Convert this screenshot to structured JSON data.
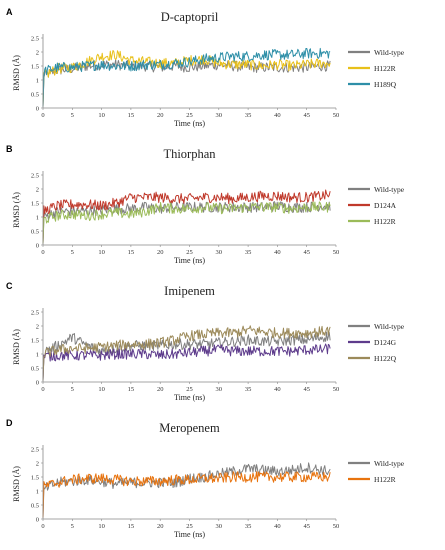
{
  "chart_data": [
    {
      "type": "line",
      "panel": "A",
      "title": "D-captopril",
      "xlabel": "Time (ns)",
      "ylabel": "RMSD (Å)",
      "xlim": [
        0,
        50
      ],
      "ylim": [
        0,
        2.5
      ],
      "xticks": [
        0,
        5,
        10,
        15,
        20,
        25,
        30,
        35,
        40,
        45,
        50
      ],
      "yticks": [
        0,
        0.5,
        1,
        1.5,
        2,
        2.5
      ],
      "grid": false,
      "legend": "right",
      "series": [
        {
          "name": "Wild-type",
          "color": "#808080",
          "x": [
            0,
            2.5,
            5,
            7.5,
            10,
            12.5,
            15,
            17.5,
            20,
            22.5,
            25,
            27.5,
            30,
            32.5,
            35,
            37.5,
            40,
            42.5,
            45,
            47.5,
            49
          ],
          "values": [
            1.15,
            1.35,
            1.4,
            1.5,
            1.55,
            1.55,
            1.5,
            1.5,
            1.45,
            1.5,
            1.45,
            1.5,
            1.55,
            1.5,
            1.45,
            1.45,
            1.45,
            1.45,
            1.45,
            1.5,
            1.5
          ]
        },
        {
          "name": "H122R",
          "color": "#E8C01A",
          "x": [
            0,
            2.5,
            5,
            7.5,
            10,
            12.5,
            15,
            17.5,
            20,
            22.5,
            25,
            27.5,
            30,
            32.5,
            35,
            37.5,
            40,
            42.5,
            45,
            47.5,
            49
          ],
          "values": [
            1.15,
            1.4,
            1.45,
            1.65,
            1.85,
            1.9,
            1.7,
            1.65,
            1.6,
            1.6,
            1.7,
            1.75,
            1.6,
            1.55,
            1.55,
            1.5,
            1.55,
            1.5,
            1.55,
            1.6,
            1.6
          ]
        },
        {
          "name": "H189Q",
          "color": "#2E8FA8",
          "x": [
            0,
            2.5,
            5,
            7.5,
            10,
            12.5,
            15,
            17.5,
            20,
            22.5,
            25,
            27.5,
            30,
            32.5,
            35,
            37.5,
            40,
            42.5,
            45,
            47.5,
            49
          ],
          "values": [
            1.3,
            1.45,
            1.45,
            1.5,
            1.55,
            1.5,
            1.5,
            1.55,
            1.55,
            1.6,
            1.65,
            1.75,
            1.8,
            1.85,
            1.85,
            1.9,
            1.9,
            1.9,
            1.95,
            1.95,
            1.95
          ]
        }
      ]
    },
    {
      "type": "line",
      "panel": "B",
      "title": "Thiorphan",
      "xlabel": "Time (ns)",
      "ylabel": "RMSD (Å)",
      "xlim": [
        0,
        50
      ],
      "ylim": [
        0,
        2.5
      ],
      "xticks": [
        0,
        5,
        10,
        15,
        20,
        25,
        30,
        35,
        40,
        45,
        50
      ],
      "yticks": [
        0,
        0.5,
        1,
        1.5,
        2,
        2.5
      ],
      "grid": false,
      "legend": "right",
      "series": [
        {
          "name": "Wild-type",
          "color": "#808080",
          "x": [
            0,
            2.5,
            5,
            7.5,
            10,
            12.5,
            15,
            17.5,
            20,
            22.5,
            25,
            27.5,
            30,
            32.5,
            35,
            37.5,
            40,
            42.5,
            45,
            47.5,
            49
          ],
          "values": [
            1.0,
            1.2,
            1.2,
            1.2,
            1.25,
            1.3,
            1.3,
            1.35,
            1.3,
            1.35,
            1.35,
            1.35,
            1.35,
            1.35,
            1.35,
            1.35,
            1.4,
            1.35,
            1.35,
            1.4,
            1.4
          ]
        },
        {
          "name": "D124A",
          "color": "#C0392B",
          "x": [
            0,
            2.5,
            5,
            7.5,
            10,
            12.5,
            15,
            17.5,
            20,
            22.5,
            25,
            27.5,
            30,
            32.5,
            35,
            37.5,
            40,
            42.5,
            45,
            47.5,
            49
          ],
          "values": [
            1.2,
            1.4,
            1.45,
            1.45,
            1.4,
            1.5,
            1.7,
            1.7,
            1.7,
            1.65,
            1.65,
            1.7,
            1.7,
            1.65,
            1.7,
            1.75,
            1.75,
            1.7,
            1.7,
            1.75,
            1.8
          ]
        },
        {
          "name": "H122R",
          "color": "#9BBB59",
          "x": [
            0,
            2.5,
            5,
            7.5,
            10,
            12.5,
            15,
            17.5,
            20,
            22.5,
            25,
            27.5,
            30,
            32.5,
            35,
            37.5,
            40,
            42.5,
            45,
            47.5,
            49
          ],
          "values": [
            0.9,
            1.05,
            1.1,
            1.05,
            1.1,
            1.15,
            1.1,
            1.2,
            1.35,
            1.3,
            1.3,
            1.35,
            1.3,
            1.3,
            1.35,
            1.35,
            1.35,
            1.3,
            1.35,
            1.35,
            1.35
          ]
        }
      ]
    },
    {
      "type": "line",
      "panel": "C",
      "title": "Imipenem",
      "xlabel": "Time (ns)",
      "ylabel": "RMSD (Å)",
      "xlim": [
        0,
        50
      ],
      "ylim": [
        0,
        2.5
      ],
      "xticks": [
        0,
        5,
        10,
        15,
        20,
        25,
        30,
        35,
        40,
        45,
        50
      ],
      "yticks": [
        0,
        0.5,
        1,
        1.5,
        2,
        2.5
      ],
      "grid": false,
      "legend": "right",
      "series": [
        {
          "name": "Wild-type",
          "color": "#808080",
          "x": [
            0,
            2.5,
            5,
            7.5,
            10,
            12.5,
            15,
            17.5,
            20,
            22.5,
            25,
            27.5,
            30,
            32.5,
            35,
            37.5,
            40,
            42.5,
            45,
            47.5,
            49
          ],
          "values": [
            1.05,
            1.3,
            1.6,
            1.3,
            1.1,
            1.2,
            1.3,
            1.3,
            1.3,
            1.35,
            1.35,
            1.35,
            1.4,
            1.45,
            1.5,
            1.45,
            1.45,
            1.5,
            1.5,
            1.6,
            1.65
          ]
        },
        {
          "name": "D124G",
          "color": "#5E3C8C",
          "x": [
            0,
            2.5,
            5,
            7.5,
            10,
            12.5,
            15,
            17.5,
            20,
            22.5,
            25,
            27.5,
            30,
            32.5,
            35,
            37.5,
            40,
            42.5,
            45,
            47.5,
            49
          ],
          "values": [
            0.9,
            0.95,
            0.95,
            0.95,
            0.95,
            1.0,
            1.0,
            1.0,
            0.95,
            1.0,
            1.05,
            1.1,
            1.15,
            1.1,
            1.1,
            1.1,
            1.1,
            1.1,
            1.15,
            1.15,
            1.2
          ]
        },
        {
          "name": "H122Q",
          "color": "#9C8A5A",
          "x": [
            0,
            2.5,
            5,
            7.5,
            10,
            12.5,
            15,
            17.5,
            20,
            22.5,
            25,
            27.5,
            30,
            32.5,
            35,
            37.5,
            40,
            42.5,
            45,
            47.5,
            49
          ],
          "values": [
            1.0,
            1.15,
            1.2,
            1.2,
            1.25,
            1.3,
            1.35,
            1.35,
            1.4,
            1.5,
            1.65,
            1.7,
            1.75,
            1.75,
            1.85,
            1.8,
            1.75,
            1.75,
            1.75,
            1.8,
            1.85
          ]
        }
      ]
    },
    {
      "type": "line",
      "panel": "D",
      "title": "Meropenem",
      "xlabel": "Time (ns)",
      "ylabel": "RMSD (Å)",
      "xlim": [
        0,
        50
      ],
      "ylim": [
        0,
        2.5
      ],
      "xticks": [
        0,
        5,
        10,
        15,
        20,
        25,
        30,
        35,
        40,
        45,
        50
      ],
      "yticks": [
        0,
        0.5,
        1,
        1.5,
        2,
        2.5
      ],
      "grid": false,
      "legend": "right",
      "series": [
        {
          "name": "Wild-type",
          "color": "#808080",
          "x": [
            0,
            2.5,
            5,
            7.5,
            10,
            12.5,
            15,
            17.5,
            20,
            22.5,
            25,
            27.5,
            30,
            32.5,
            35,
            37.5,
            40,
            42.5,
            45,
            47.5,
            49
          ],
          "values": [
            1.05,
            1.3,
            1.35,
            1.4,
            1.35,
            1.25,
            1.3,
            1.3,
            1.3,
            1.3,
            1.45,
            1.5,
            1.6,
            1.7,
            1.8,
            1.75,
            1.7,
            1.75,
            1.85,
            1.75,
            1.7
          ]
        },
        {
          "name": "H122R",
          "color": "#E8730E",
          "x": [
            0,
            2.5,
            5,
            7.5,
            10,
            12.5,
            15,
            17.5,
            20,
            22.5,
            25,
            27.5,
            30,
            32.5,
            35,
            37.5,
            40,
            42.5,
            45,
            47.5,
            49
          ],
          "values": [
            1.15,
            1.3,
            1.4,
            1.45,
            1.45,
            1.4,
            1.35,
            1.35,
            1.35,
            1.4,
            1.4,
            1.45,
            1.45,
            1.5,
            1.5,
            1.5,
            1.5,
            1.5,
            1.5,
            1.5,
            1.5
          ]
        }
      ]
    }
  ]
}
